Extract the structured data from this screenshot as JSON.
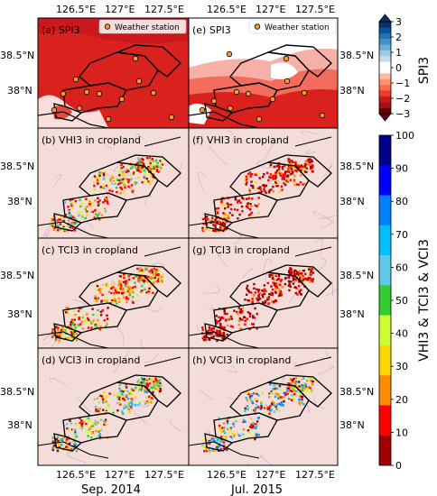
{
  "top_axis_labels": [
    "126.5°E",
    "127°E",
    "127.5°E"
  ],
  "bottom_axis_labels": [
    "126.5°E",
    "127°E",
    "127.5°E"
  ],
  "left_lat_labels": [
    "38.5°N",
    "38°N"
  ],
  "right_lat_labels": [
    "38.5°N",
    "38°N"
  ],
  "columns": [
    "Sep. 2014",
    "Jul. 2015"
  ],
  "panels": [
    {
      "id": "a",
      "label": "(a) SPI3",
      "kind": "spi"
    },
    {
      "id": "e",
      "label": "(e) SPI3",
      "kind": "spi"
    },
    {
      "id": "b",
      "label": "(b) VHI3 in cropland",
      "kind": "crop"
    },
    {
      "id": "f",
      "label": "(f) VHI3 in cropland",
      "kind": "crop"
    },
    {
      "id": "c",
      "label": "(c) TCI3 in cropland",
      "kind": "crop"
    },
    {
      "id": "g",
      "label": "(g) TCI3 in cropland",
      "kind": "crop"
    },
    {
      "id": "d",
      "label": "(d) VCI3 in cropland",
      "kind": "crop"
    },
    {
      "id": "h",
      "label": "(h) VCI3 in cropland",
      "kind": "crop"
    }
  ],
  "legend_text": "Weather station",
  "spi_colorbar": {
    "title": "SPI3",
    "ticks": [
      "3",
      "2",
      "1",
      "0",
      "−1",
      "−2",
      "−3"
    ],
    "colors": [
      "#08306b",
      "#08519c",
      "#2171b5",
      "#4292c6",
      "#6baed6",
      "#9ecae1",
      "#c6dbef",
      "#ffffff",
      "#ffffff",
      "#fcbba1",
      "#fc9272",
      "#fb6a4a",
      "#ef3b2c",
      "#cb181d",
      "#a50f15",
      "#67000d"
    ]
  },
  "veg_colorbar": {
    "title": "VHI3 & TCI3 & VCI3",
    "ticks": [
      "100",
      "90",
      "80",
      "70",
      "60",
      "50",
      "40",
      "30",
      "20",
      "10",
      "0"
    ],
    "colors": [
      "#00008b",
      "#0000ff",
      "#0080ff",
      "#00bfff",
      "#5fc8e8",
      "#33cc33",
      "#ccff33",
      "#ffd700",
      "#ff8c00",
      "#ff0000",
      "#a00000"
    ]
  },
  "colors": {
    "spi_a": "#d9221e",
    "spi_e_light": "#f7b0a6",
    "spi_e_mid": "#f36c5c",
    "spi_e_dark": "#d9221e",
    "crop_bg": "#f4dcd8",
    "station": "#f29b30"
  }
}
